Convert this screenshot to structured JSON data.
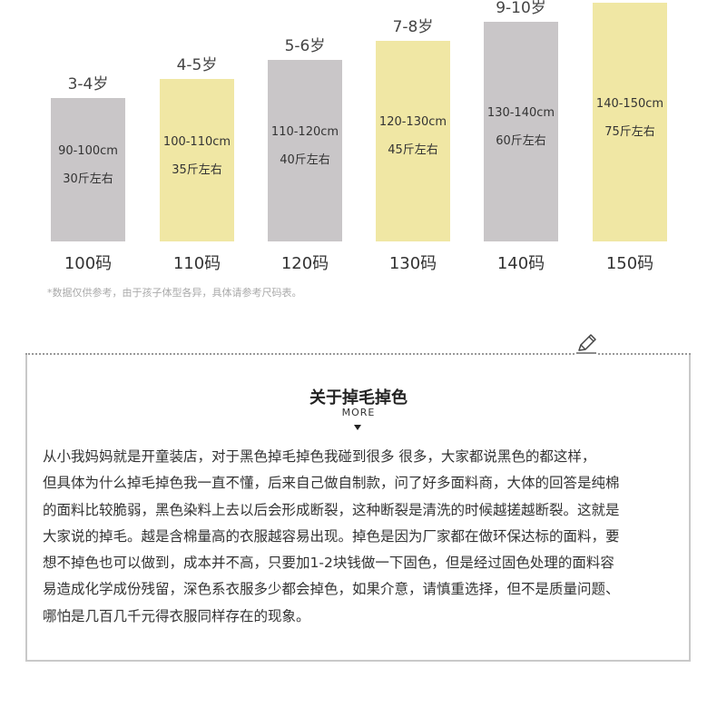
{
  "bars": [
    {
      "age": "3-4岁",
      "height": "90-100cm",
      "weight": "30斤左右",
      "size": "100码",
      "color": "grey"
    },
    {
      "age": "4-5岁",
      "height": "100-110cm",
      "weight": "35斤左右",
      "size": "110码",
      "color": "yellow"
    },
    {
      "age": "5-6岁",
      "height": "110-120cm",
      "weight": "40斤左右",
      "size": "120码",
      "color": "grey"
    },
    {
      "age": "7-8岁",
      "height": "120-130cm",
      "weight": "45斤左右",
      "size": "130码",
      "color": "yellow"
    },
    {
      "age": "9-10岁",
      "height": "130-140cm",
      "weight": "60斤左右",
      "size": "140码",
      "color": "grey"
    },
    {
      "age": "",
      "height": "140-150cm",
      "weight": "75斤左右",
      "size": "150码",
      "color": "yellow"
    }
  ],
  "colors": {
    "grey": "#c9c6c8",
    "yellow": "#f0e7a4"
  },
  "note": "*数据仅供参考，由于孩子体型各异，具体请参考尺码表。",
  "article": {
    "title": "关于掉毛掉色",
    "more": "MORE",
    "icon": "pencil-icon",
    "lines": [
      "从小我妈妈就是开童装店，对于黑色掉毛掉色我碰到很多 很多，大家都说黑色的都这样，",
      "但具体为什么掉毛掉色我一直不懂，后来自己做自制款，问了好多面料商，大体的回答是纯棉",
      "的面料比较脆弱，黑色染料上去以后会形成断裂，这种断裂是清洗的时候越搓越断裂。这就是",
      "大家说的掉毛。越是含棉量高的衣服越容易出现。掉色是因为厂家都在做环保达标的面料，要",
      "想不掉色也可以做到，成本并不高，只要加1-2块钱做一下固色，但是经过固色处理的面料容",
      "易造成化学成份残留，深色系衣服多少都会掉色，如果介意，请慎重选择，但不是质量问题、",
      "哪怕是几百几千元得衣服同样存在的现象。"
    ]
  }
}
